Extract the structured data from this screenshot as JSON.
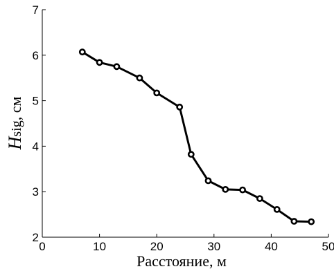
{
  "chart_data": {
    "type": "line",
    "title": "",
    "xlabel": "Расстояние, м",
    "ylabel": {
      "symbol": "H",
      "subscript": "sig",
      "unit": ", см"
    },
    "xlim": [
      0,
      50
    ],
    "ylim": [
      2,
      7
    ],
    "xticks": [
      0,
      10,
      20,
      30,
      40,
      50
    ],
    "yticks": [
      2,
      3,
      4,
      5,
      6,
      7
    ],
    "grid": false,
    "legend": "none",
    "series": [
      {
        "color": "#000000",
        "marker": "circle",
        "x": [
          7,
          10,
          13,
          17,
          20,
          24,
          26,
          29,
          32,
          35,
          38,
          41,
          44,
          47
        ],
        "y": [
          6.07,
          5.84,
          5.75,
          5.5,
          5.17,
          4.86,
          3.82,
          3.24,
          3.05,
          3.04,
          2.85,
          2.61,
          2.35,
          2.34
        ]
      }
    ]
  }
}
